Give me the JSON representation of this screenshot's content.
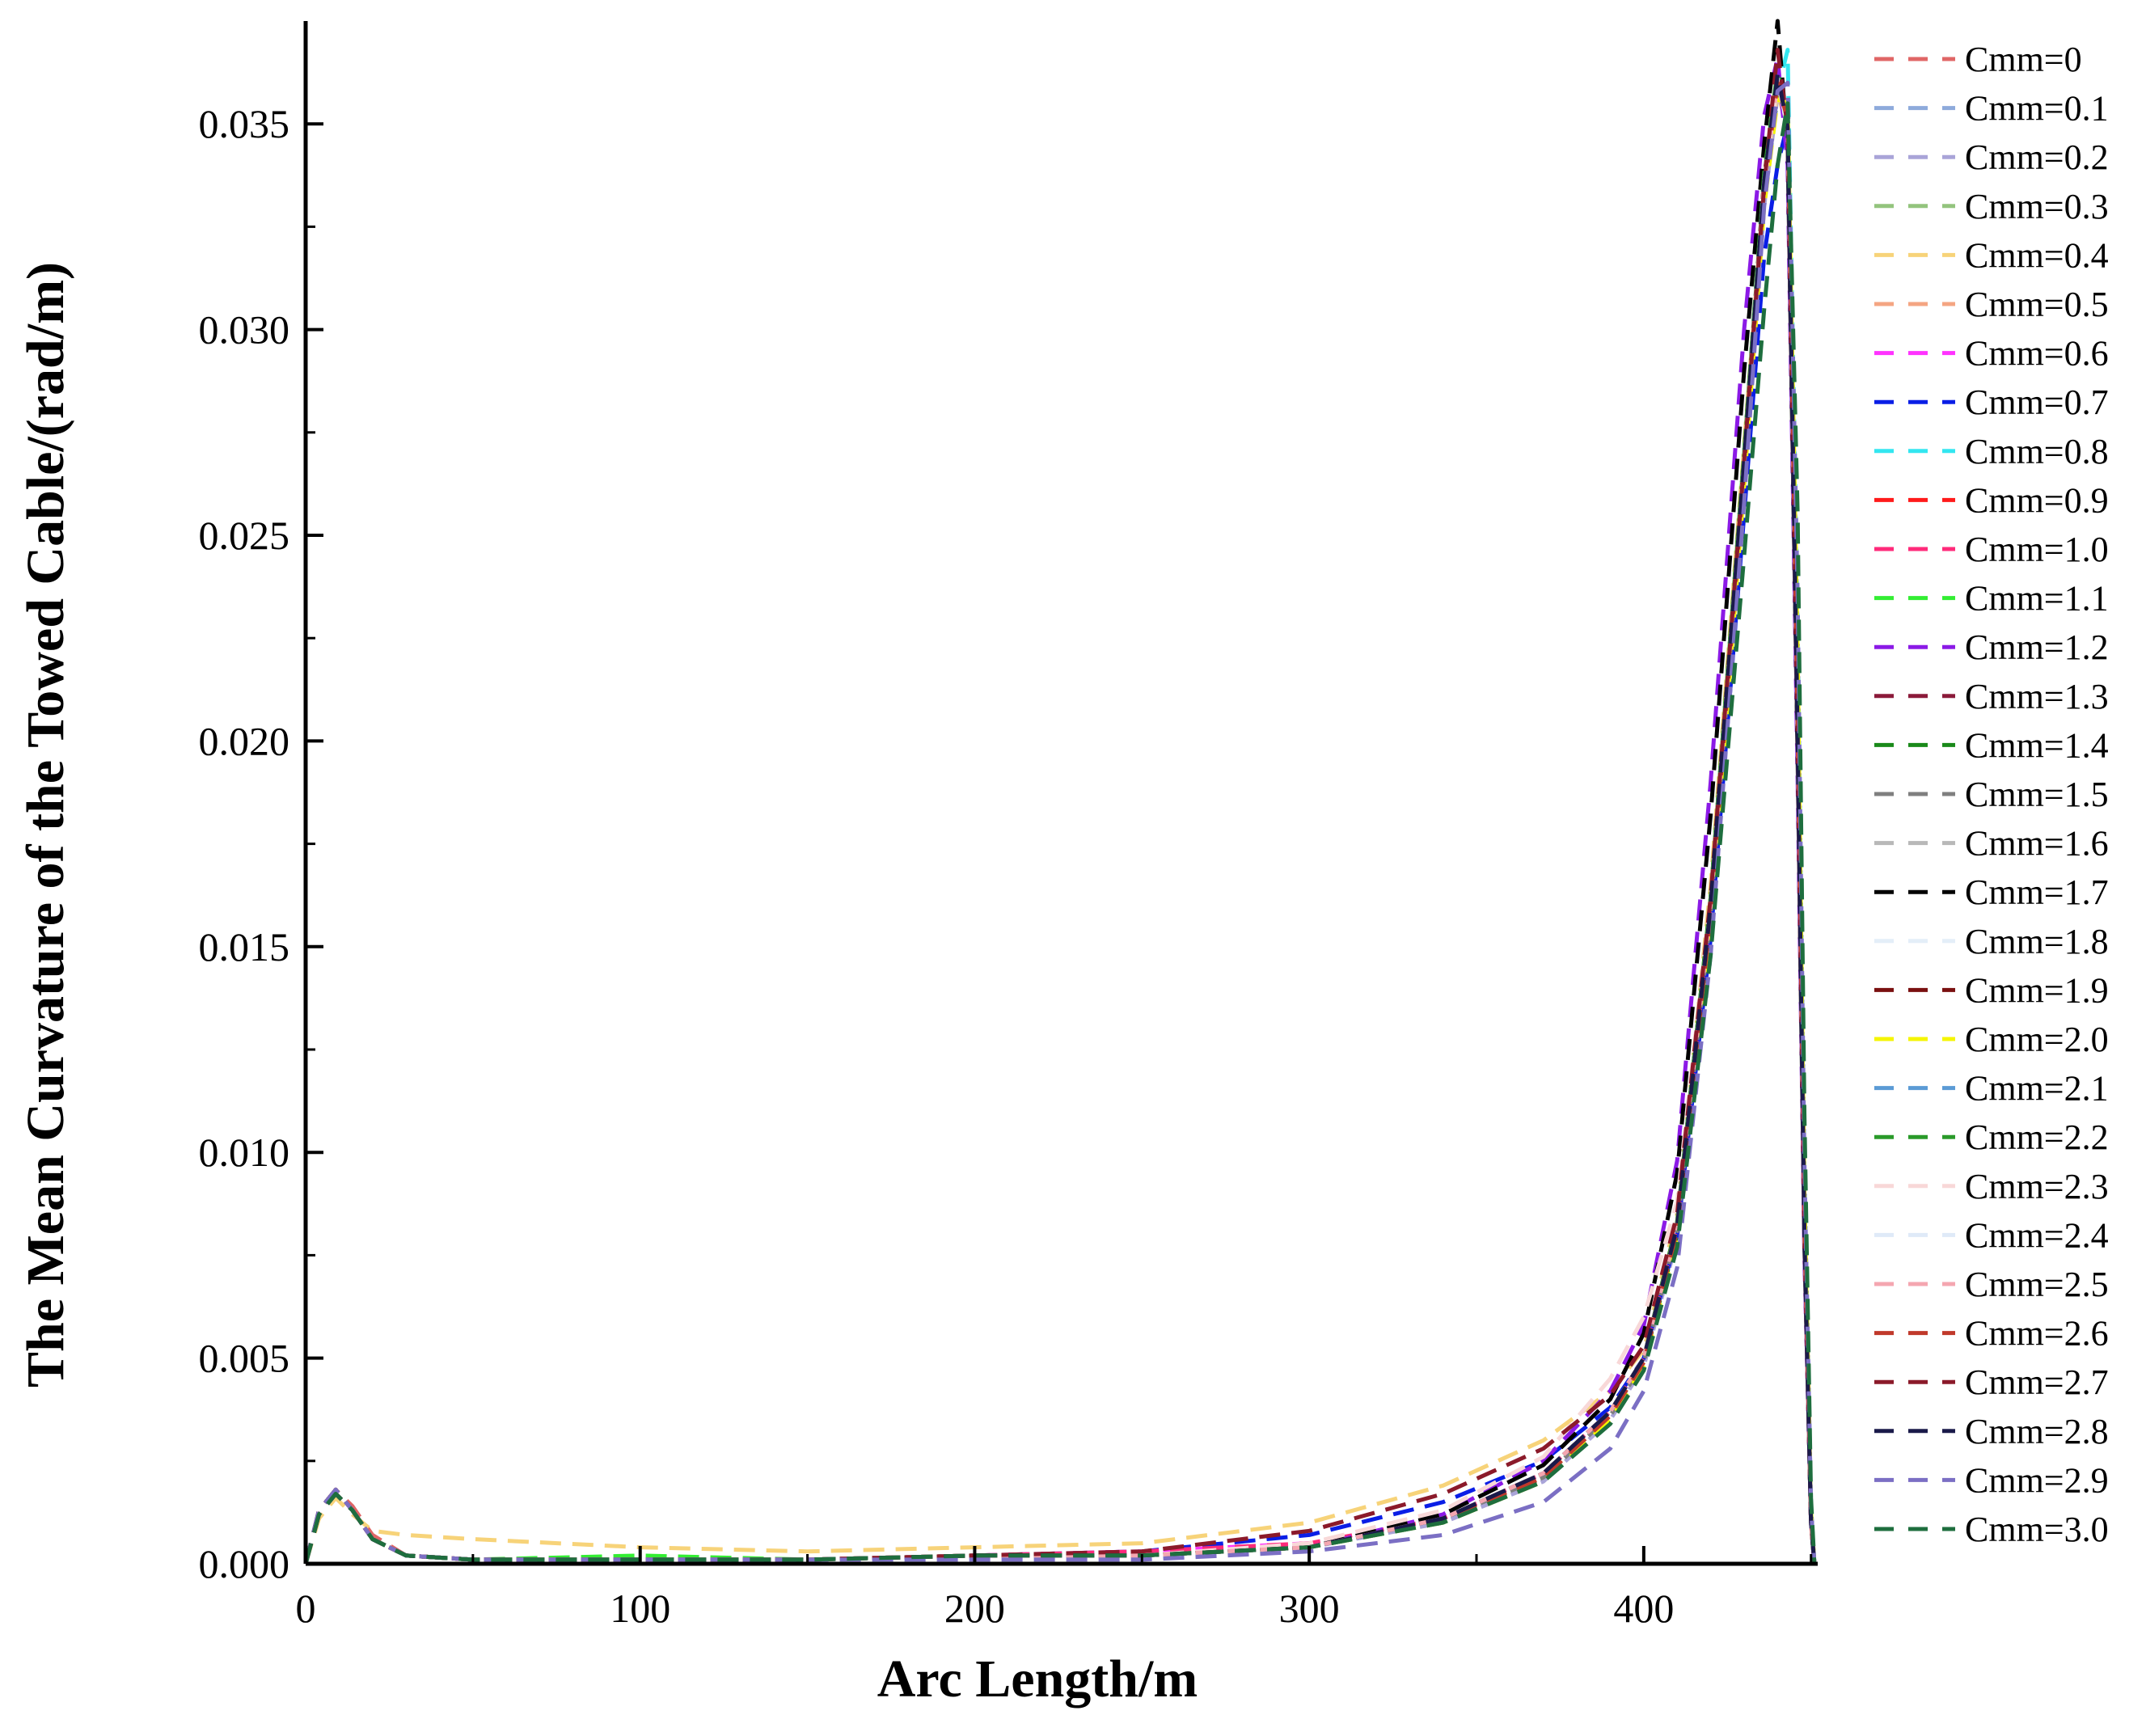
{
  "chart_data": {
    "type": "line",
    "title": "",
    "xlabel": "Arc Length/m",
    "ylabel": "The Mean Curvature of the Towed Cable/(rad/m)",
    "xlim": [
      0,
      452
    ],
    "ylim": [
      0,
      0.0375
    ],
    "x_ticks": [
      0,
      100,
      200,
      300,
      400
    ],
    "x_tick_labels": [
      "0",
      "100",
      "200",
      "300",
      "400"
    ],
    "y_ticks": [
      0,
      0.005,
      0.01,
      0.015,
      0.02,
      0.025,
      0.03,
      0.035
    ],
    "y_tick_labels": [
      "0.000",
      "0.005",
      "0.010",
      "0.015",
      "0.020",
      "0.025",
      "0.030",
      "0.035"
    ],
    "line_style": "dashed",
    "grid": false,
    "legend_position": "right",
    "x": [
      0,
      4,
      9,
      14,
      20,
      30,
      50,
      100,
      150,
      200,
      250,
      300,
      340,
      370,
      390,
      400,
      410,
      420,
      430,
      436,
      440,
      443,
      446,
      448,
      450,
      451
    ],
    "series": [
      {
        "name": "Cmm=0",
        "color": "#e06666",
        "values": [
          0,
          0.0013,
          0.0018,
          0.0014,
          0.0007,
          0.0002,
          0.0001,
          0.0001,
          0.0001,
          0.0002,
          0.0002,
          0.0004,
          0.0011,
          0.0022,
          0.0037,
          0.005,
          0.0082,
          0.016,
          0.0268,
          0.0336,
          0.0361,
          0.0349,
          0.02,
          0.008,
          0.001,
          0
        ]
      },
      {
        "name": "Cmm=0.1",
        "color": "#8eaadb",
        "values": [
          0,
          0.0012,
          0.0017,
          0.0013,
          0.0006,
          0.0002,
          0.0001,
          0.0001,
          0.0001,
          0.0002,
          0.0002,
          0.0004,
          0.001,
          0.0021,
          0.0036,
          0.0049,
          0.008,
          0.0157,
          0.0265,
          0.0333,
          0.0359,
          0.0352,
          0.021,
          0.0085,
          0.0012,
          0
        ]
      },
      {
        "name": "Cmm=0.2",
        "color": "#a9a4d8",
        "values": [
          0,
          0.0013,
          0.0018,
          0.0013,
          0.0006,
          0.0002,
          0.0001,
          0.0001,
          0.0001,
          0.0002,
          0.0002,
          0.0004,
          0.001,
          0.002,
          0.0035,
          0.0048,
          0.0079,
          0.0155,
          0.0262,
          0.033,
          0.0357,
          0.0354,
          0.022,
          0.009,
          0.0013,
          0
        ]
      },
      {
        "name": "Cmm=0.3",
        "color": "#93c47d",
        "values": [
          0,
          0.0012,
          0.0017,
          0.0013,
          0.0006,
          0.0002,
          0.0001,
          0.0001,
          0.0001,
          0.0002,
          0.0002,
          0.0004,
          0.0011,
          0.0022,
          0.0037,
          0.005,
          0.0083,
          0.0162,
          0.027,
          0.0338,
          0.0363,
          0.035,
          0.0205,
          0.0082,
          0.0011,
          0
        ]
      },
      {
        "name": "Cmm=0.4",
        "color": "#f7d379",
        "values": [
          0,
          0.0011,
          0.0016,
          0.0012,
          0.0008,
          0.0007,
          0.0006,
          0.0004,
          0.0003,
          0.0004,
          0.0005,
          0.001,
          0.0019,
          0.003,
          0.0042,
          0.0052,
          0.0085,
          0.0165,
          0.0272,
          0.0335,
          0.0358,
          0.0348,
          0.0198,
          0.0078,
          0.001,
          0
        ]
      },
      {
        "name": "Cmm=0.5",
        "color": "#f4a582",
        "values": [
          0,
          0.0012,
          0.0017,
          0.0013,
          0.0006,
          0.0002,
          0.0001,
          0.0001,
          0.0001,
          0.0002,
          0.0002,
          0.0004,
          0.0011,
          0.0021,
          0.0036,
          0.0049,
          0.0081,
          0.0158,
          0.0266,
          0.0334,
          0.036,
          0.0351,
          0.0202,
          0.0081,
          0.0011,
          0
        ]
      },
      {
        "name": "Cmm=0.6",
        "color": "#ff33ff",
        "values": [
          0,
          0.0013,
          0.0018,
          0.0013,
          0.0006,
          0.0002,
          0.0001,
          0.0001,
          0.0001,
          0.0002,
          0.0003,
          0.0005,
          0.0011,
          0.0022,
          0.0037,
          0.005,
          0.0082,
          0.016,
          0.0268,
          0.0336,
          0.0362,
          0.035,
          0.0201,
          0.008,
          0.001,
          0
        ]
      },
      {
        "name": "Cmm=0.7",
        "color": "#0a1ee6",
        "values": [
          0,
          0.0012,
          0.0017,
          0.0013,
          0.0006,
          0.0002,
          0.0001,
          0.0001,
          0.0001,
          0.0002,
          0.0003,
          0.0007,
          0.0015,
          0.0025,
          0.0038,
          0.005,
          0.008,
          0.0152,
          0.0255,
          0.0318,
          0.034,
          0.035,
          0.0225,
          0.0095,
          0.0014,
          0
        ]
      },
      {
        "name": "Cmm=0.8",
        "color": "#33e6f0",
        "values": [
          0,
          0.0012,
          0.0017,
          0.0013,
          0.0006,
          0.0002,
          0.0001,
          0.0001,
          0.0001,
          0.0002,
          0.0002,
          0.0004,
          0.001,
          0.0021,
          0.0036,
          0.0049,
          0.008,
          0.0157,
          0.0264,
          0.0332,
          0.0358,
          0.0368,
          0.023,
          0.0092,
          0.0013,
          0
        ]
      },
      {
        "name": "Cmm=0.9",
        "color": "#ff1a1a",
        "values": [
          0,
          0.0013,
          0.0018,
          0.0013,
          0.0006,
          0.0002,
          0.0001,
          0.0001,
          0.0001,
          0.0002,
          0.0002,
          0.0004,
          0.0011,
          0.0022,
          0.0037,
          0.005,
          0.0082,
          0.016,
          0.0268,
          0.0336,
          0.0361,
          0.0349,
          0.02,
          0.008,
          0.001,
          0
        ]
      },
      {
        "name": "Cmm=1.0",
        "color": "#ff2a7a",
        "values": [
          0,
          0.0012,
          0.0017,
          0.0013,
          0.0006,
          0.0002,
          0.0001,
          0.0001,
          0.0001,
          0.0002,
          0.0003,
          0.0005,
          0.0011,
          0.0022,
          0.0037,
          0.005,
          0.0082,
          0.0159,
          0.0267,
          0.0335,
          0.036,
          0.035,
          0.0203,
          0.0081,
          0.0011,
          0
        ]
      },
      {
        "name": "Cmm=1.1",
        "color": "#33ee33",
        "values": [
          0,
          0.0013,
          0.0018,
          0.0013,
          0.0006,
          0.0002,
          0.0001,
          0.0002,
          0.0001,
          0.0002,
          0.0002,
          0.0004,
          0.0011,
          0.0022,
          0.0037,
          0.005,
          0.0083,
          0.0162,
          0.027,
          0.0337,
          0.0362,
          0.0349,
          0.02,
          0.008,
          0.001,
          0
        ]
      },
      {
        "name": "Cmm=1.2",
        "color": "#8b1ae6",
        "values": [
          0,
          0.0012,
          0.0017,
          0.0013,
          0.0006,
          0.0002,
          0.0001,
          0.0001,
          0.0001,
          0.0002,
          0.0002,
          0.0004,
          0.0012,
          0.0025,
          0.0042,
          0.0058,
          0.0098,
          0.019,
          0.03,
          0.0352,
          0.0366,
          0.034,
          0.019,
          0.0075,
          0.001,
          0
        ]
      },
      {
        "name": "Cmm=1.3",
        "color": "#8b1a3a",
        "values": [
          0,
          0.0013,
          0.0018,
          0.0013,
          0.0006,
          0.0002,
          0.0001,
          0.0001,
          0.0001,
          0.0002,
          0.0002,
          0.0004,
          0.0011,
          0.0022,
          0.0037,
          0.005,
          0.0082,
          0.016,
          0.0268,
          0.0336,
          0.0361,
          0.0349,
          0.02,
          0.008,
          0.001,
          0
        ]
      },
      {
        "name": "Cmm=1.4",
        "color": "#1a8a1a",
        "values": [
          0,
          0.0012,
          0.0017,
          0.0013,
          0.0006,
          0.0002,
          0.0001,
          0.0001,
          0.0001,
          0.0002,
          0.0002,
          0.0004,
          0.001,
          0.0021,
          0.0036,
          0.0049,
          0.008,
          0.0156,
          0.0263,
          0.0331,
          0.0357,
          0.0353,
          0.0215,
          0.0088,
          0.0012,
          0
        ]
      },
      {
        "name": "Cmm=1.5",
        "color": "#7f7f7f",
        "values": [
          0,
          0.0013,
          0.0018,
          0.0013,
          0.0006,
          0.0002,
          0.0001,
          0.0001,
          0.0001,
          0.0002,
          0.0002,
          0.0004,
          0.0011,
          0.0021,
          0.0036,
          0.0049,
          0.0081,
          0.0158,
          0.0266,
          0.0334,
          0.036,
          0.0351,
          0.0203,
          0.0081,
          0.0011,
          0
        ]
      },
      {
        "name": "Cmm=1.6",
        "color": "#b8b8b8",
        "values": [
          0,
          0.0012,
          0.0017,
          0.0013,
          0.0006,
          0.0002,
          0.0001,
          0.0001,
          0.0001,
          0.0002,
          0.0002,
          0.0004,
          0.0011,
          0.0022,
          0.0037,
          0.005,
          0.0082,
          0.016,
          0.0268,
          0.0336,
          0.0361,
          0.0349,
          0.02,
          0.008,
          0.001,
          0
        ]
      },
      {
        "name": "Cmm=1.7",
        "color": "#000000",
        "values": [
          0,
          0.0013,
          0.0018,
          0.0013,
          0.0006,
          0.0002,
          0.0001,
          0.0001,
          0.0001,
          0.0002,
          0.0002,
          0.0004,
          0.0012,
          0.0024,
          0.004,
          0.0056,
          0.0095,
          0.0182,
          0.029,
          0.0345,
          0.0375,
          0.0345,
          0.0195,
          0.0078,
          0.001,
          0
        ]
      },
      {
        "name": "Cmm=1.8",
        "color": "#e4eef8",
        "values": [
          0,
          0.0012,
          0.0017,
          0.0013,
          0.0006,
          0.0002,
          0.0001,
          0.0001,
          0.0001,
          0.0002,
          0.0002,
          0.0004,
          0.0011,
          0.0022,
          0.0037,
          0.005,
          0.0082,
          0.016,
          0.0268,
          0.0336,
          0.0361,
          0.0349,
          0.02,
          0.008,
          0.001,
          0
        ]
      },
      {
        "name": "Cmm=1.9",
        "color": "#7a1010",
        "values": [
          0,
          0.0013,
          0.0018,
          0.0013,
          0.0006,
          0.0002,
          0.0001,
          0.0001,
          0.0001,
          0.0002,
          0.0002,
          0.0004,
          0.0011,
          0.0022,
          0.0037,
          0.005,
          0.0083,
          0.0161,
          0.0269,
          0.0337,
          0.0362,
          0.0349,
          0.02,
          0.008,
          0.001,
          0
        ]
      },
      {
        "name": "Cmm=2.0",
        "color": "#f5f500",
        "values": [
          0,
          0.0012,
          0.0017,
          0.0013,
          0.0006,
          0.0002,
          0.0001,
          0.0001,
          0.0001,
          0.0002,
          0.0002,
          0.0004,
          0.001,
          0.002,
          0.0035,
          0.0048,
          0.0079,
          0.0155,
          0.0262,
          0.033,
          0.0356,
          0.0355,
          0.0222,
          0.0091,
          0.0013,
          0
        ]
      },
      {
        "name": "Cmm=2.1",
        "color": "#5b9bd5",
        "values": [
          0,
          0.0013,
          0.0018,
          0.0013,
          0.0006,
          0.0002,
          0.0001,
          0.0001,
          0.0001,
          0.0002,
          0.0002,
          0.0004,
          0.0011,
          0.0022,
          0.0037,
          0.005,
          0.0082,
          0.016,
          0.0268,
          0.0336,
          0.0361,
          0.0349,
          0.02,
          0.008,
          0.001,
          0
        ]
      },
      {
        "name": "Cmm=2.2",
        "color": "#2a9a2a",
        "values": [
          0,
          0.0012,
          0.0017,
          0.0013,
          0.0006,
          0.0002,
          0.0001,
          0.0001,
          0.0001,
          0.0002,
          0.0002,
          0.0004,
          0.0011,
          0.0022,
          0.0037,
          0.005,
          0.0083,
          0.0162,
          0.027,
          0.0338,
          0.0363,
          0.035,
          0.0204,
          0.0082,
          0.0011,
          0
        ]
      },
      {
        "name": "Cmm=2.3",
        "color": "#f8d8d8",
        "values": [
          0,
          0.0013,
          0.0018,
          0.0013,
          0.0006,
          0.0002,
          0.0001,
          0.0001,
          0.0001,
          0.0002,
          0.0002,
          0.0005,
          0.0013,
          0.0026,
          0.0045,
          0.006,
          0.0088,
          0.0162,
          0.0268,
          0.0335,
          0.036,
          0.0349,
          0.02,
          0.008,
          0.001,
          0
        ]
      },
      {
        "name": "Cmm=2.4",
        "color": "#dfeaf8",
        "values": [
          0,
          0.0012,
          0.0017,
          0.0013,
          0.0006,
          0.0002,
          0.0001,
          0.0001,
          0.0001,
          0.0002,
          0.0002,
          0.0004,
          0.0011,
          0.0022,
          0.0037,
          0.005,
          0.0082,
          0.016,
          0.0268,
          0.0336,
          0.0361,
          0.0349,
          0.02,
          0.008,
          0.001,
          0
        ]
      },
      {
        "name": "Cmm=2.5",
        "color": "#f4a6b0",
        "values": [
          0,
          0.0013,
          0.0018,
          0.0013,
          0.0006,
          0.0002,
          0.0001,
          0.0001,
          0.0001,
          0.0002,
          0.0002,
          0.0004,
          0.0011,
          0.0022,
          0.0037,
          0.005,
          0.0082,
          0.016,
          0.0268,
          0.0336,
          0.0361,
          0.0349,
          0.02,
          0.008,
          0.001,
          0
        ]
      },
      {
        "name": "Cmm=2.6",
        "color": "#c0392b",
        "values": [
          0,
          0.0012,
          0.0017,
          0.0013,
          0.0006,
          0.0002,
          0.0001,
          0.0001,
          0.0001,
          0.0002,
          0.0002,
          0.0004,
          0.0011,
          0.0021,
          0.0036,
          0.0049,
          0.0081,
          0.0158,
          0.0266,
          0.0334,
          0.036,
          0.0351,
          0.0203,
          0.0081,
          0.0011,
          0
        ]
      },
      {
        "name": "Cmm=2.7",
        "color": "#8b1a2a",
        "values": [
          0,
          0.0013,
          0.0018,
          0.0013,
          0.0006,
          0.0002,
          0.0001,
          0.0001,
          0.0001,
          0.0002,
          0.0003,
          0.0008,
          0.0017,
          0.0028,
          0.0041,
          0.0053,
          0.0085,
          0.0162,
          0.0268,
          0.0335,
          0.0368,
          0.0349,
          0.02,
          0.008,
          0.001,
          0
        ]
      },
      {
        "name": "Cmm=2.8",
        "color": "#1a1a4a",
        "values": [
          0,
          0.0012,
          0.0017,
          0.0013,
          0.0006,
          0.0002,
          0.0001,
          0.0001,
          0.0001,
          0.0002,
          0.0002,
          0.0004,
          0.0011,
          0.0022,
          0.0037,
          0.005,
          0.0082,
          0.016,
          0.0268,
          0.0336,
          0.0362,
          0.0349,
          0.02,
          0.008,
          0.001,
          0
        ]
      },
      {
        "name": "Cmm=2.9",
        "color": "#7b6fc4",
        "values": [
          0,
          0.0013,
          0.0018,
          0.0013,
          0.0006,
          0.0002,
          0.0001,
          0.0001,
          0.0001,
          0.0001,
          0.0001,
          0.0003,
          0.0007,
          0.0015,
          0.0028,
          0.0042,
          0.0072,
          0.0148,
          0.0258,
          0.033,
          0.0358,
          0.036,
          0.0235,
          0.0098,
          0.0014,
          0
        ]
      },
      {
        "name": "Cmm=3.0",
        "color": "#1e6e3e",
        "values": [
          0,
          0.0012,
          0.0017,
          0.0013,
          0.0006,
          0.0002,
          0.0001,
          0.0001,
          0.0001,
          0.0002,
          0.0002,
          0.0004,
          0.001,
          0.002,
          0.0034,
          0.0047,
          0.0077,
          0.0148,
          0.0245,
          0.0305,
          0.034,
          0.0355,
          0.0255,
          0.011,
          0.0016,
          0
        ]
      }
    ]
  }
}
